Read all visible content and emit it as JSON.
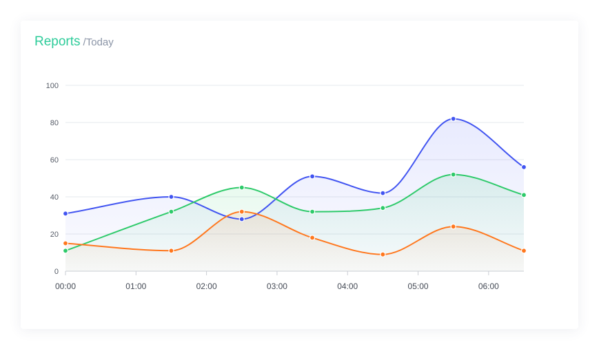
{
  "header": {
    "title": "Reports",
    "subtitle": "/Today"
  },
  "chart_data": {
    "type": "area",
    "x": [
      0,
      1.5,
      2.5,
      3.5,
      4.5,
      5.5,
      6.5
    ],
    "xticks": [
      "00:00",
      "01:00",
      "02:00",
      "03:00",
      "04:00",
      "05:00",
      "06:00"
    ],
    "xlim": [
      0,
      6.5
    ],
    "ylim": [
      0,
      100
    ],
    "yticks": [
      0,
      20,
      40,
      60,
      80,
      100
    ],
    "grid": true,
    "title": "",
    "xlabel": "",
    "ylabel": "",
    "series": [
      {
        "color": "#4154f1",
        "values": [
          31,
          40,
          28,
          51,
          42,
          82,
          56
        ]
      },
      {
        "color": "#2eca6a",
        "values": [
          11,
          32,
          45,
          32,
          34,
          52,
          41
        ]
      },
      {
        "color": "#ff771d",
        "values": [
          15,
          11,
          32,
          18,
          9,
          24,
          11
        ]
      }
    ]
  }
}
